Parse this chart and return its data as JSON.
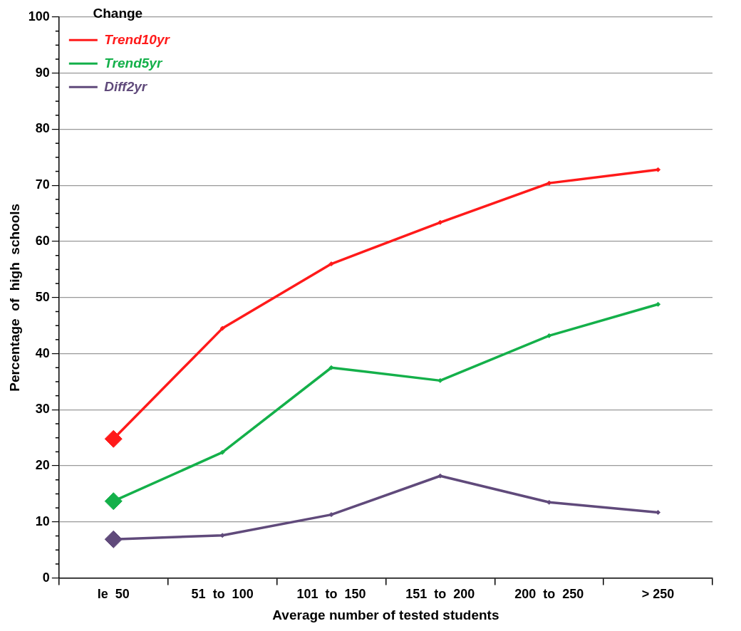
{
  "chart_data": {
    "type": "line",
    "xlabel": "Average number of tested students",
    "ylabel": "Percentage  of  high  schools",
    "legend_title": "Change",
    "categories": [
      "le  50",
      "51  to  100",
      "101  to  150",
      "151  to  200",
      "200  to  250",
      "> 250"
    ],
    "series": [
      {
        "name": "Trend10yr",
        "color": "#ff1a1a",
        "values": [
          24.8,
          44.5,
          56,
          63.4,
          70.4,
          72.8
        ]
      },
      {
        "name": "Trend5yr",
        "color": "#14b04a",
        "values": [
          13.7,
          22.4,
          37.5,
          35.2,
          43.2,
          48.8
        ]
      },
      {
        "name": "Diff2yr",
        "color": "#604a7b",
        "values": [
          6.9,
          7.6,
          11.3,
          18.2,
          13.5,
          11.7
        ]
      }
    ],
    "ylim": [
      0,
      100
    ],
    "yticks": [
      0,
      10,
      20,
      30,
      40,
      50,
      60,
      70,
      80,
      90,
      100
    ],
    "grid": "y",
    "legend": "top left",
    "marker": "diamond",
    "line_style": "solid"
  }
}
